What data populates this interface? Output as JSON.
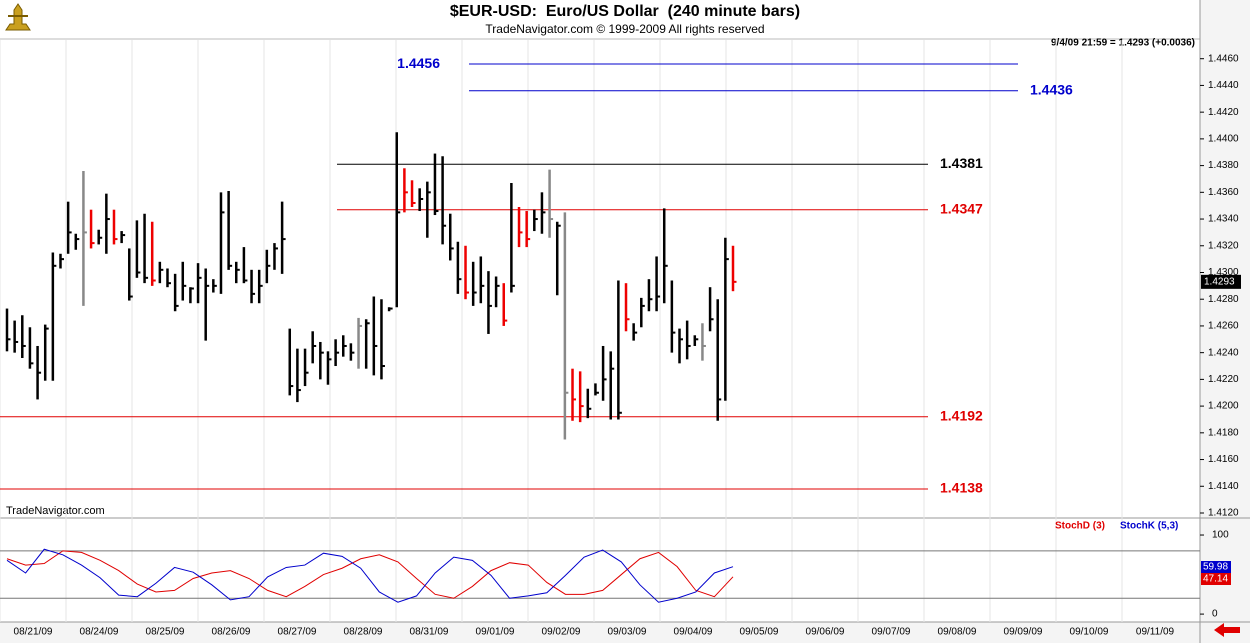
{
  "chart_data": [
    {
      "type": "hlc",
      "title": "$EUR-USD:  Euro/US Dollar  (240 minute bars)",
      "subtitle": "TradeNavigator.com © 1999-2009 All rights reserved",
      "header": "9/4/09 21:59 = 1.4293 (+0.0036)",
      "watermark": "TradeNavigator.com",
      "high": [
        1.4273,
        1.4264,
        1.4268,
        1.4259,
        1.4245,
        1.4261,
        1.4315,
        1.4314,
        1.4353,
        1.4329,
        1.4376,
        1.4347,
        1.4332,
        1.4359,
        1.4347,
        1.4331,
        1.4318,
        1.4339,
        1.4344,
        1.4338,
        1.4308,
        1.4303,
        1.4299,
        1.4308,
        1.4289,
        1.4307,
        1.4303,
        1.4295,
        1.436,
        1.4361,
        1.4308,
        1.4319,
        1.4302,
        1.4302,
        1.4317,
        1.4322,
        1.4353,
        1.4258,
        1.4243,
        1.4243,
        1.4256,
        1.4248,
        1.4241,
        1.425,
        1.4253,
        1.4247,
        1.4266,
        1.4265,
        1.4282,
        1.428,
        1.4274,
        1.4405,
        1.4378,
        1.4369,
        1.4363,
        1.4368,
        1.4389,
        1.4387,
        1.4344,
        1.4323,
        1.432,
        1.4308,
        1.4312,
        1.4301,
        1.4297,
        1.4292,
        1.4367,
        1.4349,
        1.4346,
        1.4347,
        1.436,
        1.4377,
        1.4338,
        1.4345,
        1.4228,
        1.4226,
        1.4213,
        1.4217,
        1.4245,
        1.4241,
        1.4294,
        1.4292,
        1.4262,
        1.4281,
        1.4295,
        1.4312,
        1.4348,
        1.4294,
        1.4258,
        1.4264,
        1.4253,
        1.4262,
        1.4289,
        1.428,
        1.4326,
        1.432
      ],
      "low": [
        1.4241,
        1.424,
        1.4236,
        1.4228,
        1.4205,
        1.4219,
        1.4219,
        1.4303,
        1.4314,
        1.4317,
        1.4275,
        1.4318,
        1.4321,
        1.4314,
        1.4321,
        1.4322,
        1.4279,
        1.4296,
        1.4292,
        1.429,
        1.4292,
        1.4289,
        1.4271,
        1.4279,
        1.4277,
        1.4277,
        1.4249,
        1.4285,
        1.4284,
        1.4302,
        1.4292,
        1.4292,
        1.4277,
        1.4277,
        1.4292,
        1.4302,
        1.4299,
        1.4208,
        1.4203,
        1.4215,
        1.4232,
        1.422,
        1.4216,
        1.423,
        1.4237,
        1.4234,
        1.4228,
        1.4228,
        1.4223,
        1.422,
        1.4271,
        1.4274,
        1.4345,
        1.4349,
        1.4346,
        1.4326,
        1.4343,
        1.4321,
        1.4309,
        1.4284,
        1.428,
        1.4275,
        1.4277,
        1.4254,
        1.4274,
        1.426,
        1.4285,
        1.4319,
        1.4319,
        1.4331,
        1.4329,
        1.4326,
        1.4283,
        1.4175,
        1.4189,
        1.4188,
        1.4191,
        1.4208,
        1.4204,
        1.419,
        1.419,
        1.4256,
        1.4249,
        1.4259,
        1.4271,
        1.4271,
        1.4277,
        1.424,
        1.4232,
        1.4235,
        1.4245,
        1.4234,
        1.4256,
        1.4189,
        1.4204,
        1.4286
      ],
      "close": [
        1.425,
        1.4248,
        1.4245,
        1.4232,
        1.4225,
        1.4258,
        1.4305,
        1.431,
        1.433,
        1.4325,
        1.433,
        1.4322,
        1.4326,
        1.434,
        1.4325,
        1.4328,
        1.4282,
        1.43,
        1.4296,
        1.4294,
        1.4302,
        1.4292,
        1.4275,
        1.429,
        1.4288,
        1.4296,
        1.429,
        1.429,
        1.4345,
        1.4305,
        1.4302,
        1.4294,
        1.4284,
        1.429,
        1.4305,
        1.4318,
        1.4325,
        1.4215,
        1.4212,
        1.4225,
        1.4245,
        1.424,
        1.4235,
        1.424,
        1.4245,
        1.424,
        1.426,
        1.4262,
        1.4245,
        1.423,
        1.4273,
        1.4345,
        1.436,
        1.4352,
        1.4355,
        1.436,
        1.4346,
        1.4335,
        1.4318,
        1.4295,
        1.4285,
        1.4285,
        1.429,
        1.4275,
        1.429,
        1.4264,
        1.429,
        1.433,
        1.4325,
        1.434,
        1.4345,
        1.434,
        1.4335,
        1.421,
        1.4205,
        1.42,
        1.4198,
        1.421,
        1.422,
        1.4228,
        1.4195,
        1.4265,
        1.4255,
        1.4275,
        1.428,
        1.4282,
        1.4305,
        1.4255,
        1.425,
        1.4245,
        1.425,
        1.4245,
        1.4265,
        1.4205,
        1.431,
        1.4293
      ],
      "bar_colors": [
        "#000",
        "#000",
        "#000",
        "#000",
        "#000",
        "#000",
        "#000",
        "#000",
        "#000",
        "#000",
        "#888",
        "#e00",
        "#000",
        "#000",
        "#e00",
        "#000",
        "#000",
        "#000",
        "#000",
        "#e00",
        "#000",
        "#000",
        "#000",
        "#000",
        "#000",
        "#000",
        "#000",
        "#000",
        "#000",
        "#000",
        "#000",
        "#000",
        "#000",
        "#000",
        "#000",
        "#000",
        "#000",
        "#000",
        "#000",
        "#000",
        "#000",
        "#000",
        "#000",
        "#000",
        "#000",
        "#000",
        "#888",
        "#000",
        "#000",
        "#000",
        "#000",
        "#000",
        "#e00",
        "#e00",
        "#000",
        "#000",
        "#000",
        "#000",
        "#000",
        "#000",
        "#e00",
        "#000",
        "#000",
        "#000",
        "#000",
        "#e00",
        "#000",
        "#e00",
        "#e00",
        "#000",
        "#000",
        "#888",
        "#000",
        "#888",
        "#e00",
        "#e00",
        "#000",
        "#000",
        "#000",
        "#000",
        "#000",
        "#e00",
        "#000",
        "#000",
        "#000",
        "#000",
        "#000",
        "#000",
        "#000",
        "#000",
        "#000",
        "#888",
        "#000",
        "#000",
        "#000",
        "#e00"
      ],
      "ylim": [
        1.4117,
        1.4474
      ],
      "yticks": [
        {
          "value": 1.412,
          "label": "1.4120"
        },
        {
          "value": 1.414,
          "label": "1.4140"
        },
        {
          "value": 1.416,
          "label": "1.4160"
        },
        {
          "value": 1.418,
          "label": "1.4180"
        },
        {
          "value": 1.42,
          "label": "1.4200"
        },
        {
          "value": 1.422,
          "label": "1.4220"
        },
        {
          "value": 1.424,
          "label": "1.4240"
        },
        {
          "value": 1.426,
          "label": "1.4260"
        },
        {
          "value": 1.428,
          "label": "1.4280"
        },
        {
          "value": 1.43,
          "label": "1.4300"
        },
        {
          "value": 1.432,
          "label": "1.4320"
        },
        {
          "value": 1.434,
          "label": "1.4340"
        },
        {
          "value": 1.436,
          "label": "1.4360"
        },
        {
          "value": 1.438,
          "label": "1.4380"
        },
        {
          "value": 1.44,
          "label": "1.4400"
        },
        {
          "value": 1.442,
          "label": "1.4420"
        },
        {
          "value": 1.444,
          "label": "1.4440"
        },
        {
          "value": 1.446,
          "label": "1.4460"
        }
      ],
      "levels": [
        {
          "value": 1.4456,
          "color": "#0000cc"
        },
        {
          "value": 1.4436,
          "color": "#0000cc"
        },
        {
          "value": 1.4381,
          "color": "#000000"
        },
        {
          "value": 1.4347,
          "color": "#e00000"
        },
        {
          "value": 1.4192,
          "color": "#e00000"
        },
        {
          "value": 1.4138,
          "color": "#e00000"
        }
      ],
      "dates": [
        "08/21/09",
        "08/24/09",
        "08/25/09",
        "08/26/09",
        "08/27/09",
        "08/28/09",
        "08/31/09",
        "09/01/09",
        "09/02/09",
        "09/03/09",
        "09/04/09",
        "09/05/09",
        "09/06/09",
        "09/07/09",
        "09/08/09",
        "09/09/09",
        "09/10/09",
        "09/11/09"
      ],
      "grid": true
    },
    {
      "type": "line",
      "series": [
        {
          "name": "StochD (3)",
          "color": "#e00000",
          "values": [
            70,
            62,
            64,
            80,
            78,
            68,
            55,
            38,
            28,
            30,
            45,
            52,
            55,
            45,
            30,
            22,
            35,
            50,
            58,
            70,
            75,
            66,
            45,
            25,
            20,
            35,
            55,
            65,
            62,
            40,
            25,
            25,
            30,
            50,
            70,
            78,
            60,
            30,
            22,
            47.14
          ]
        },
        {
          "name": "StochK (5,3)",
          "color": "#0000cc",
          "values": [
            68,
            52,
            82,
            75,
            62,
            46,
            24,
            22,
            39,
            59,
            53,
            37,
            18,
            22,
            47,
            59,
            62,
            77,
            73,
            58,
            28,
            15,
            23,
            52,
            72,
            68,
            49,
            20,
            23,
            27,
            49,
            72,
            81,
            66,
            37,
            15,
            20,
            28,
            52,
            59.98
          ]
        }
      ],
      "ylim": [
        -10,
        119
      ],
      "yticks": [
        100,
        0
      ],
      "levels": [
        80,
        20
      ]
    }
  ]
}
